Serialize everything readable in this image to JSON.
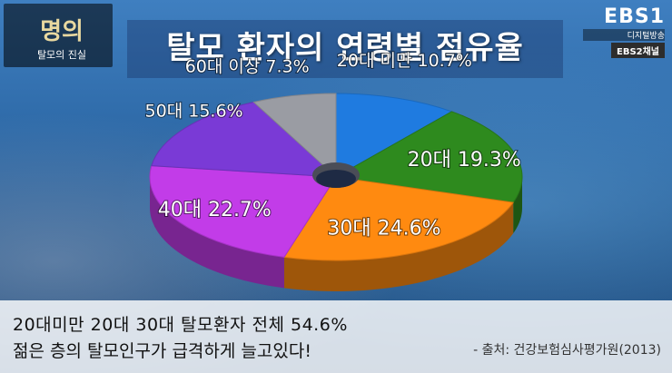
{
  "header": {
    "title": "탈모 환자의 연령별 점유율",
    "logo_main": "명의",
    "logo_sub": "탈모의 진실",
    "broadcaster": "EBS1",
    "broadcaster_sub": "디지털방송",
    "channel_badge": "EBS2채널"
  },
  "chart_data": {
    "type": "pie",
    "title": "탈모 환자의 연령별 점유율",
    "slices": [
      {
        "label": "20대 미만",
        "value": 10.7,
        "color": "#1f7be0"
      },
      {
        "label": "20대",
        "value": 19.3,
        "color": "#2e8a1e"
      },
      {
        "label": "30대",
        "value": 24.6,
        "color": "#ff8a10"
      },
      {
        "label": "40대",
        "value": 22.7,
        "color": "#c23ce8"
      },
      {
        "label": "50대",
        "value": 15.6,
        "color": "#7a3ad6"
      },
      {
        "label": "60대 이상",
        "value": 7.3,
        "color": "#9a9ca3"
      }
    ],
    "value_suffix": "%"
  },
  "caption": {
    "line1": "20대미만 20대 30대 탈모환자 전체 54.6%",
    "line2": "젊은 층의 탈모인구가 급격하게 늘고있다!",
    "source": "- 출처: 건강보험심사평가원(2013)"
  }
}
